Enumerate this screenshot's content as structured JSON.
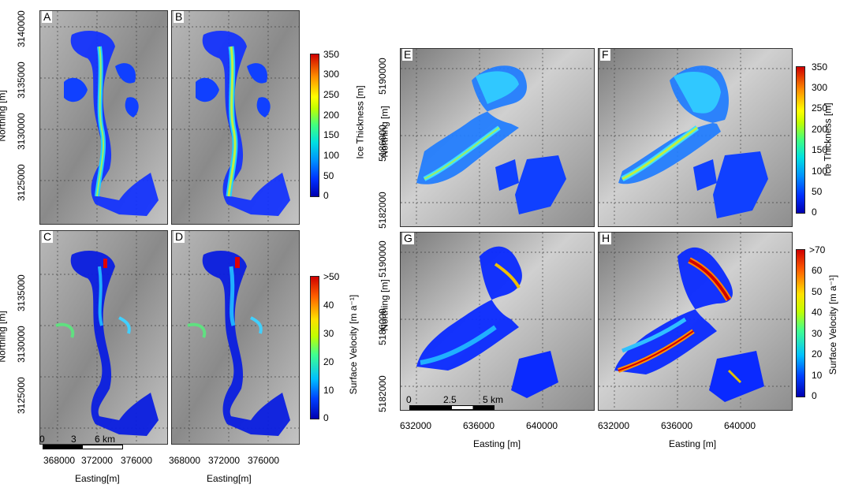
{
  "panels": {
    "A": "A",
    "B": "B",
    "C": "C",
    "D": "D",
    "E": "E",
    "F": "F",
    "G": "G",
    "H": "H"
  },
  "left": {
    "y_ticks_top": [
      "3140000",
      "3135000",
      "3130000",
      "3125000"
    ],
    "y_ticks_bottom": [
      "3135000",
      "3130000",
      "3125000"
    ],
    "x_ticks": [
      "368000",
      "372000",
      "376000"
    ],
    "ylabel": "Northing [m]",
    "xlabel": "Easting[m]",
    "scale_bar": [
      "0",
      "3",
      "6 km"
    ]
  },
  "right": {
    "y_ticks": [
      "5190000",
      "5186000",
      "5182000"
    ],
    "x_ticks": [
      "632000",
      "636000",
      "640000"
    ],
    "ylabel": "Northing [m]",
    "xlabel": "Easting [m]",
    "scale_bar": [
      "0",
      "2.5",
      "5 km"
    ]
  },
  "colorbars": {
    "thickness_left": {
      "label": "Ice Thickness [m]",
      "ticks": [
        "350",
        "300",
        "250",
        "200",
        "150",
        "100",
        "50",
        "0"
      ]
    },
    "velocity_left": {
      "label": "Surface Velocity [m a⁻¹]",
      "ticks": [
        ">50",
        "40",
        "30",
        "20",
        "10",
        "0"
      ]
    },
    "thickness_right": {
      "label": "Ice Thickness [m]",
      "ticks": [
        "350",
        "300",
        "250",
        "200",
        "150",
        "100",
        "50",
        "0"
      ]
    },
    "velocity_right": {
      "label": "Surface Velocity [m a⁻¹]",
      "ticks": [
        ">70",
        "60",
        "50",
        "40",
        "30",
        "20",
        "10",
        "0"
      ]
    }
  },
  "colors": {
    "ice_blue": "#0a2cff",
    "ice_cyan": "#19c8ff",
    "ice_green": "#9af060",
    "ice_red": "#e00000",
    "terrain": "#9a9a9a"
  }
}
